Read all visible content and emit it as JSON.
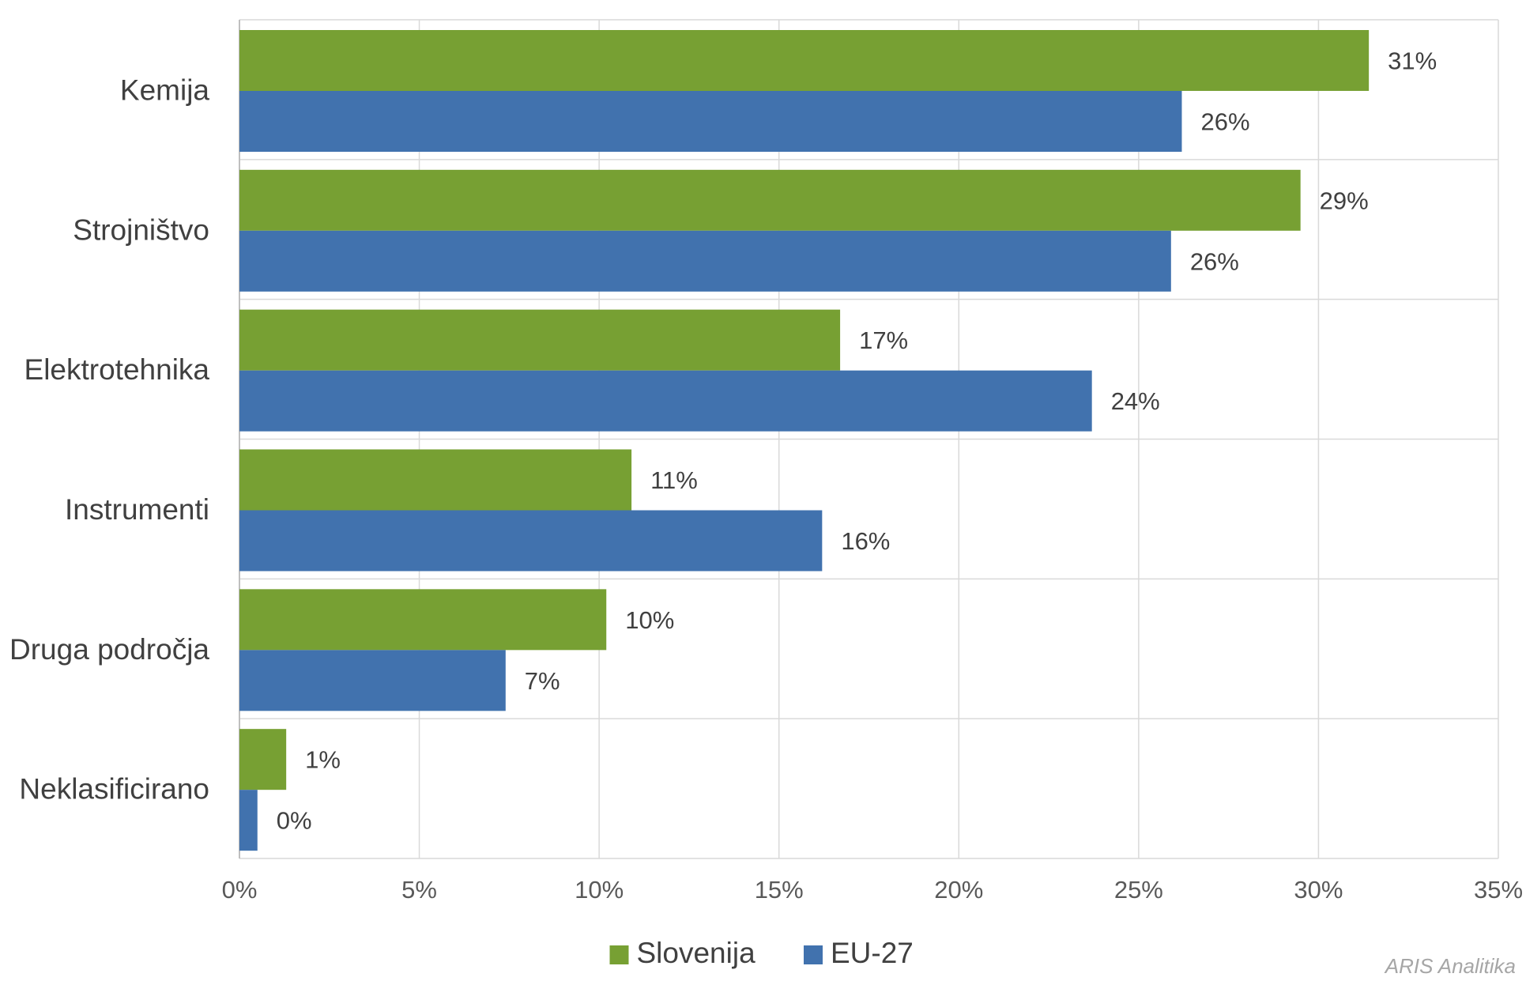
{
  "chart_data": {
    "type": "bar",
    "orientation": "horizontal",
    "categories": [
      "Kemija",
      "Strojništvo",
      "Elektrotehnika",
      "Instrumenti",
      "Druga področja",
      "Neklasificirano"
    ],
    "series": [
      {
        "name": "Slovenija",
        "color": "#77a033",
        "values": [
          31.4,
          29.5,
          16.7,
          10.9,
          10.2,
          1.3
        ],
        "labels": [
          "31%",
          "29%",
          "17%",
          "11%",
          "10%",
          "1%"
        ]
      },
      {
        "name": "EU-27",
        "color": "#4172ae",
        "values": [
          26.2,
          25.9,
          23.7,
          16.2,
          7.4,
          0.5
        ],
        "labels": [
          "26%",
          "26%",
          "24%",
          "16%",
          "7%",
          "0%"
        ]
      }
    ],
    "xlim": [
      0,
      35
    ],
    "xticks": [
      0,
      5,
      10,
      15,
      20,
      25,
      30,
      35
    ],
    "xtick_labels": [
      "0%",
      "5%",
      "10%",
      "15%",
      "20%",
      "25%",
      "30%",
      "35%"
    ],
    "grid": true,
    "legend_position": "bottom-center",
    "xlabel": "",
    "ylabel": "",
    "title": ""
  },
  "watermark": "ARIS Analitika"
}
